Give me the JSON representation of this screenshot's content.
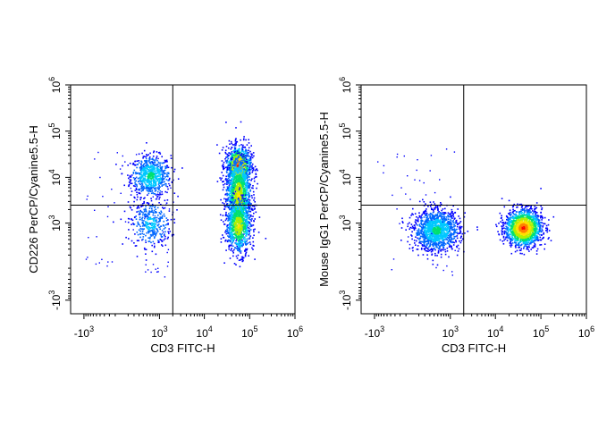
{
  "chart_data": [
    {
      "type": "scatter",
      "subtype": "flow-cytometry-density-plot",
      "xlabel": "CD3 FITC-H",
      "ylabel": "CD226 PerCP/Cyanine5.5-H",
      "x_scale": "biexponential",
      "y_scale": "biexponential",
      "xlim": [
        -2000,
        1000000
      ],
      "ylim": [
        -2000,
        1000000
      ],
      "x_ticks": [
        {
          "value": -1000,
          "base": "-10",
          "exp": "3"
        },
        {
          "value": 1000,
          "base": "10",
          "exp": "3"
        },
        {
          "value": 10000,
          "base": "10",
          "exp": "4"
        },
        {
          "value": 100000,
          "base": "10",
          "exp": "5"
        },
        {
          "value": 1000000,
          "base": "10",
          "exp": "6"
        }
      ],
      "y_ticks": [
        {
          "value": -1000,
          "base": "-10",
          "exp": "3"
        },
        {
          "value": 1000,
          "base": "10",
          "exp": "3"
        },
        {
          "value": 10000,
          "base": "10",
          "exp": "4"
        },
        {
          "value": 100000,
          "base": "10",
          "exp": "5"
        },
        {
          "value": 1000000,
          "base": "10",
          "exp": "6"
        }
      ],
      "gate_x": 2000,
      "gate_y": 2500,
      "populations": [
        {
          "x_center": 600,
          "y_center": 11000,
          "x_spread": 0.22,
          "y_spread": 0.22,
          "count": 700,
          "peak_color": "green"
        },
        {
          "x_center": 600,
          "y_center": 1000,
          "x_spread": 0.22,
          "y_spread": 0.25,
          "count": 380,
          "peak_color": "cyan"
        },
        {
          "x_center": 55000,
          "y_center": 18000,
          "x_spread": 0.14,
          "y_spread": 0.22,
          "count": 900,
          "peak_color": "red"
        },
        {
          "x_center": 55000,
          "y_center": 4000,
          "x_spread": 0.14,
          "y_spread": 0.45,
          "count": 1300,
          "peak_color": "yellow"
        },
        {
          "x_center": 55000,
          "y_center": 900,
          "x_spread": 0.14,
          "y_spread": 0.3,
          "count": 700,
          "peak_color": "yellow"
        }
      ]
    },
    {
      "type": "scatter",
      "subtype": "flow-cytometry-density-plot",
      "xlabel": "CD3 FITC-H",
      "ylabel": "Mouse IgG1 PerCP/Cyanine5.5-H",
      "x_scale": "biexponential",
      "y_scale": "biexponential",
      "xlim": [
        -2000,
        1000000
      ],
      "ylim": [
        -2000,
        1000000
      ],
      "x_ticks": [
        {
          "value": -1000,
          "base": "-10",
          "exp": "3"
        },
        {
          "value": 1000,
          "base": "10",
          "exp": "3"
        },
        {
          "value": 10000,
          "base": "10",
          "exp": "4"
        },
        {
          "value": 100000,
          "base": "10",
          "exp": "5"
        },
        {
          "value": 1000000,
          "base": "10",
          "exp": "6"
        }
      ],
      "y_ticks": [
        {
          "value": -1000,
          "base": "-10",
          "exp": "3"
        },
        {
          "value": 1000,
          "base": "10",
          "exp": "3"
        },
        {
          "value": 10000,
          "base": "10",
          "exp": "4"
        },
        {
          "value": 100000,
          "base": "10",
          "exp": "5"
        },
        {
          "value": 1000000,
          "base": "10",
          "exp": "6"
        }
      ],
      "gate_x": 2000,
      "gate_y": 2500,
      "populations": [
        {
          "x_center": 450,
          "y_center": 700,
          "x_spread": 0.25,
          "y_spread": 0.22,
          "count": 1300,
          "peak_color": "green"
        },
        {
          "x_center": 40000,
          "y_center": 800,
          "x_spread": 0.2,
          "y_spread": 0.2,
          "count": 1500,
          "peak_color": "red"
        }
      ]
    }
  ]
}
